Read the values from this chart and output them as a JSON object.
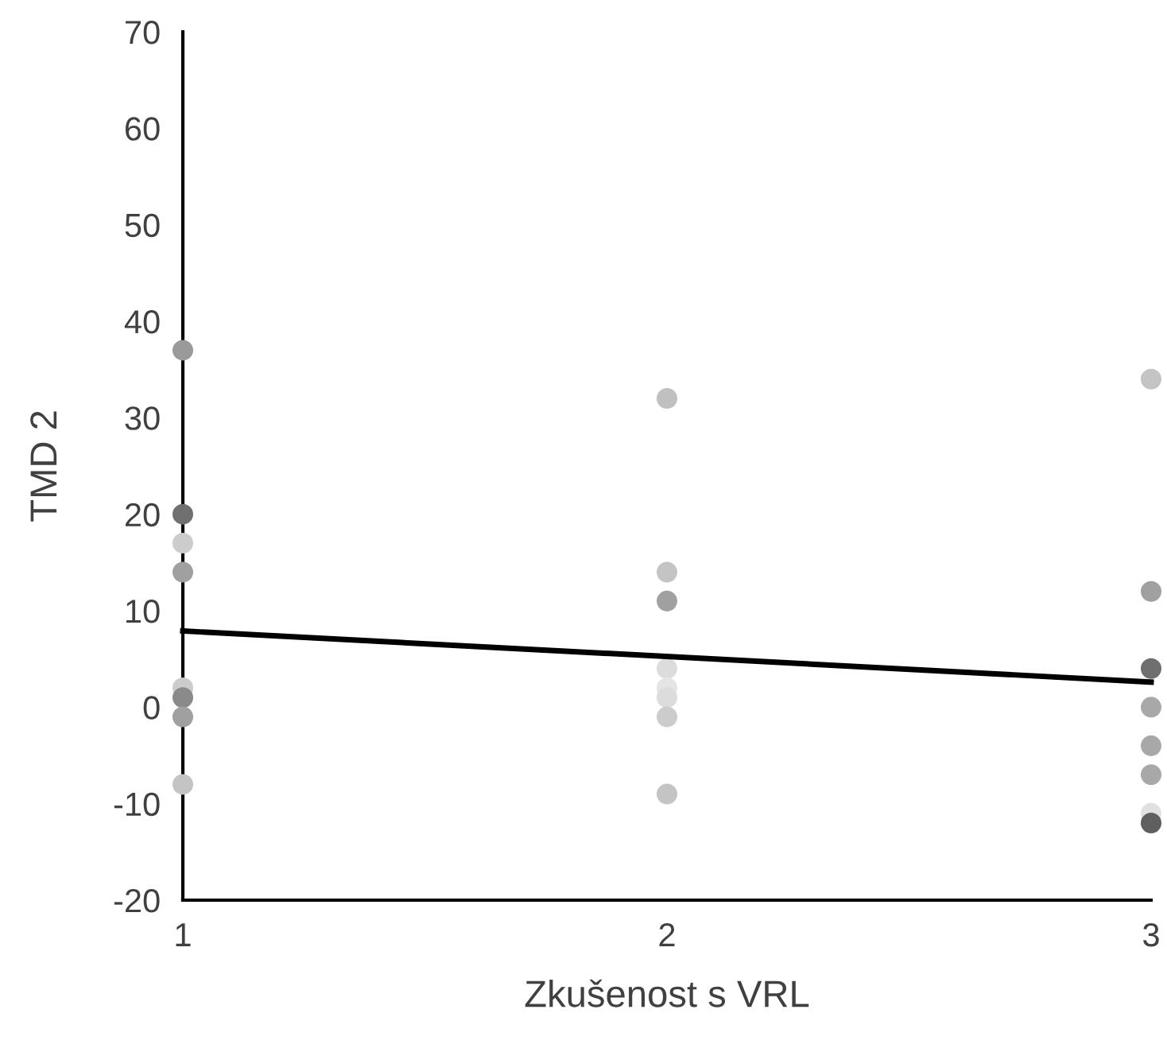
{
  "chart_data": {
    "type": "scatter",
    "xlabel": "Zkušenost s VRL",
    "ylabel": "TMD 2",
    "xlim": [
      1,
      3
    ],
    "ylim": [
      -20,
      70
    ],
    "xticks": [
      1,
      2,
      3
    ],
    "yticks": [
      -20,
      -10,
      0,
      10,
      20,
      30,
      40,
      50,
      60,
      70
    ],
    "grid": false,
    "legend": false,
    "series": [
      {
        "marker": "circle",
        "x": [
          1,
          1,
          1,
          1,
          1,
          1,
          1,
          1,
          2,
          2,
          2,
          2,
          2,
          2,
          2,
          2,
          3,
          3,
          3,
          3,
          3,
          3,
          3,
          3
        ],
        "values": [
          37,
          20,
          17,
          14,
          2,
          1,
          -1,
          -8,
          32,
          14,
          11,
          4,
          2,
          1,
          -1,
          -9,
          34,
          12,
          4,
          0,
          -4,
          -7,
          -11,
          -12
        ],
        "colors": [
          "#9a9a9a",
          "#707070",
          "#cccccc",
          "#a0a0a0",
          "#cccccc",
          "#8a8a8a",
          "#a0a0a0",
          "#c4c4c4",
          "#c0c0c0",
          "#c4c4c4",
          "#a0a0a0",
          "#dcdcdc",
          "#e4e4e4",
          "#dcdcdc",
          "#cccccc",
          "#c4c4c4",
          "#c4c4c4",
          "#a0a0a0",
          "#6f6f6f",
          "#a8a8a8",
          "#a8a8a8",
          "#a8a8a8",
          "#e0e0e0",
          "#5f5f5f"
        ]
      },
      {
        "type": "line",
        "x": [
          1,
          3
        ],
        "values": [
          7.9,
          2.6
        ],
        "color": "#000000",
        "line_style": "solid",
        "marker": "none"
      }
    ]
  }
}
